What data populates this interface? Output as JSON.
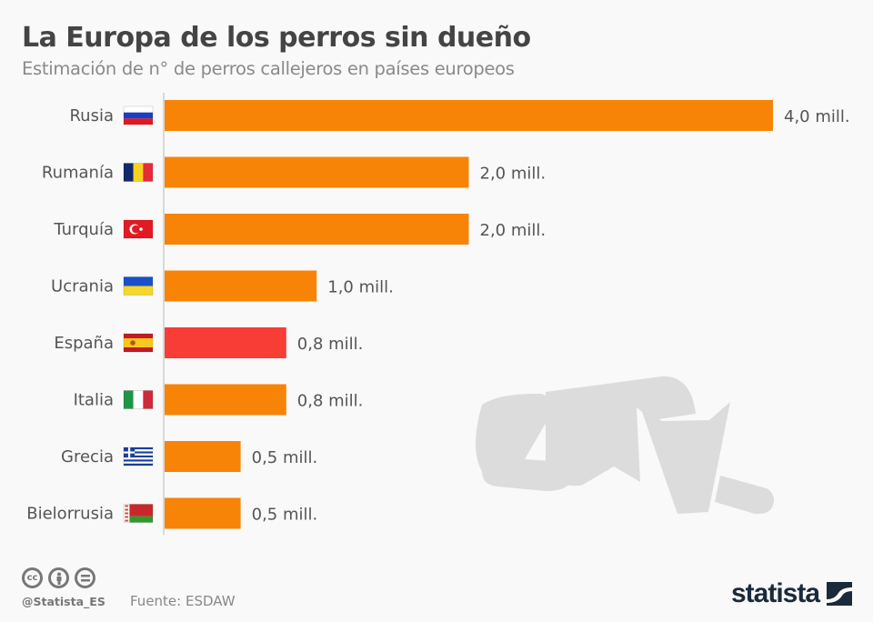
{
  "header": {
    "title": "La Europa de los perros sin dueño",
    "subtitle": "Estimación de n° de perros callejeros en países europeos"
  },
  "chart_data": {
    "type": "bar",
    "orientation": "horizontal",
    "title": "La Europa de los perros sin dueño",
    "subtitle": "Estimación de n° de perros callejeros en países europeos",
    "xlabel": "",
    "ylabel": "",
    "unit": "millones",
    "xlim": [
      0,
      4.0
    ],
    "grid": false,
    "categories": [
      "Rusia",
      "Rumanía",
      "Turquía",
      "Ucrania",
      "España",
      "Italia",
      "Grecia",
      "Bielorrusia"
    ],
    "values": [
      4.0,
      2.0,
      2.0,
      1.0,
      0.8,
      0.8,
      0.5,
      0.5
    ],
    "value_labels": [
      "4,0 mill.",
      "2,0 mill.",
      "2,0 mill.",
      "1,0 mill.",
      "0,8 mill.",
      "0,8 mill.",
      "0,5 mill.",
      "0,5 mill."
    ],
    "flags": [
      "russia-flag",
      "romania-flag",
      "turkey-flag",
      "ukraine-flag",
      "spain-flag",
      "italy-flag",
      "greece-flag",
      "belarus-flag"
    ],
    "colors": [
      "#f78406",
      "#f78406",
      "#f78406",
      "#f78406",
      "#f83c36",
      "#f78406",
      "#f78406",
      "#f78406"
    ],
    "highlight": "España"
  },
  "footer": {
    "handle": "@Statista_ES",
    "source": "Fuente: ESDAW",
    "license_icons": [
      "cc-icon",
      "attribution-icon",
      "no-derivatives-icon"
    ],
    "logo": "statista"
  }
}
